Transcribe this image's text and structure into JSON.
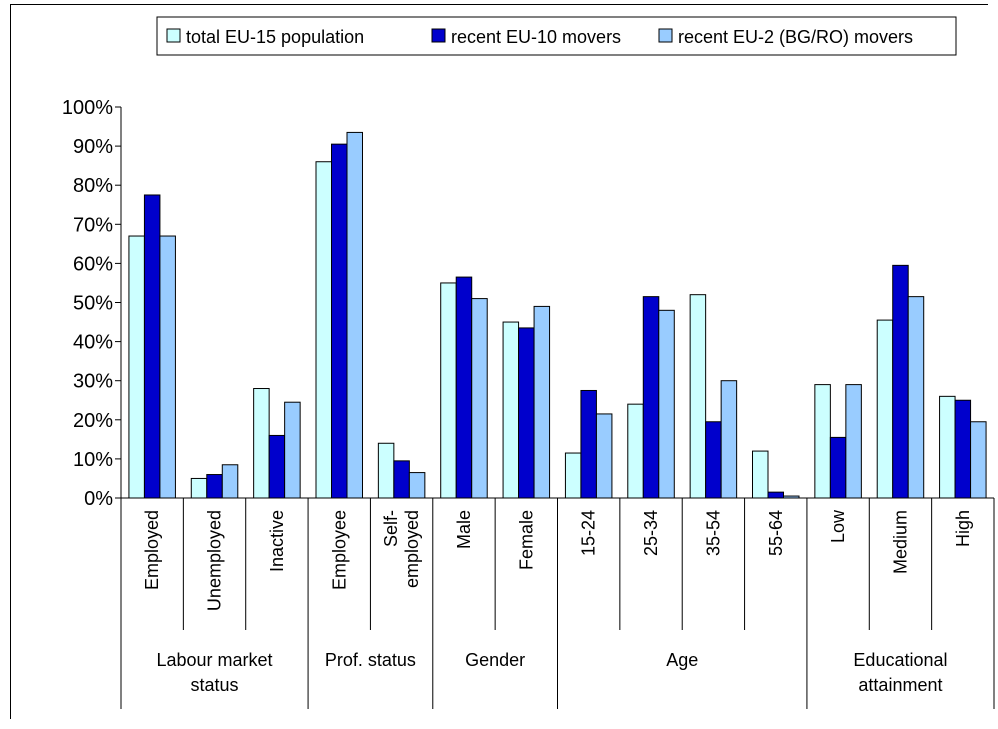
{
  "chart_data": {
    "type": "bar",
    "title": "",
    "xlabel": "",
    "ylabel": "",
    "ylim": [
      0,
      100
    ],
    "y_ticks": [
      "0%",
      "10%",
      "20%",
      "30%",
      "40%",
      "50%",
      "60%",
      "70%",
      "80%",
      "90%",
      "100%"
    ],
    "grid": false,
    "legend_position": "top",
    "categories": [
      "Employed",
      "Unemployed",
      "Inactive",
      "Employee",
      "Self-employed",
      "Male",
      "Female",
      "15-24",
      "25-34",
      "35-54",
      "55-64",
      "Low",
      "Medium",
      "High"
    ],
    "category_lines": [
      [
        "Employed"
      ],
      [
        "Unemployed"
      ],
      [
        "Inactive"
      ],
      [
        "Employee"
      ],
      [
        "Self-",
        "employed"
      ],
      [
        "Male"
      ],
      [
        "Female"
      ],
      [
        "15-24"
      ],
      [
        "25-34"
      ],
      [
        "35-54"
      ],
      [
        "55-64"
      ],
      [
        "Low"
      ],
      [
        "Medium"
      ],
      [
        "High"
      ]
    ],
    "groups": [
      {
        "label": "Labour market status",
        "lines": [
          "Labour market",
          "status"
        ],
        "start": 0,
        "end": 2
      },
      {
        "label": "Prof. status",
        "lines": [
          "Prof. status"
        ],
        "start": 3,
        "end": 4
      },
      {
        "label": "Gender",
        "lines": [
          "Gender"
        ],
        "start": 5,
        "end": 6
      },
      {
        "label": "Age",
        "lines": [
          "Age"
        ],
        "start": 7,
        "end": 10
      },
      {
        "label": "Educational attainment",
        "lines": [
          "Educational",
          "attainment"
        ],
        "start": 11,
        "end": 13
      }
    ],
    "series": [
      {
        "name": "total EU-15 population",
        "color": "#ccffff",
        "values": [
          67,
          5,
          28,
          86,
          14,
          55,
          45,
          11.5,
          24,
          52,
          12,
          29,
          45.5,
          26
        ]
      },
      {
        "name": "recent EU-10 movers",
        "color": "#0000cc",
        "values": [
          77.5,
          6,
          16,
          90.5,
          9.5,
          56.5,
          43.5,
          27.5,
          51.5,
          19.5,
          1.5,
          15.5,
          59.5,
          25
        ]
      },
      {
        "name": "recent EU-2 (BG/RO) movers",
        "color": "#99ccff",
        "values": [
          67,
          8.5,
          24.5,
          93.5,
          6.5,
          51,
          49,
          21.5,
          48,
          30,
          0.5,
          29,
          51.5,
          19.5
        ]
      }
    ]
  }
}
